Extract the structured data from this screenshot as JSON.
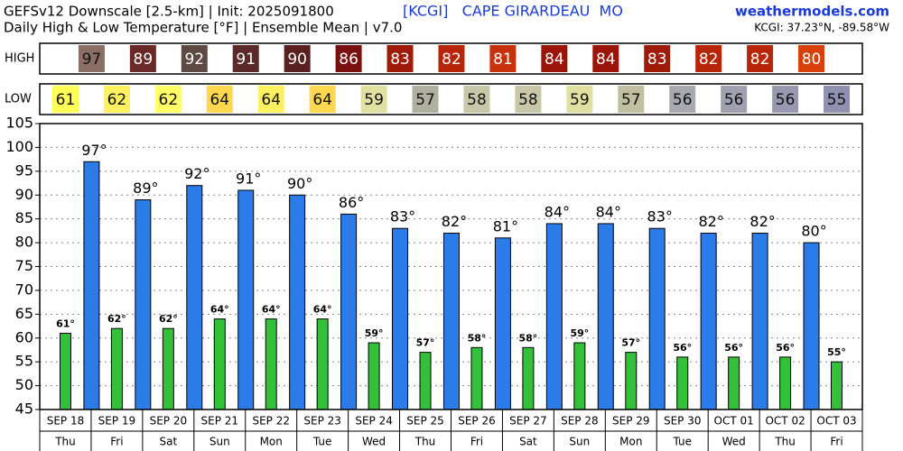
{
  "chart_data": {
    "type": "bar",
    "title": "GEFSv12 Downscale [2.5-km] | Init: 2025091800",
    "subtitle": "Daily High & Low Temperature [°F] | Ensemble Mean | v7.0",
    "station": "[KCGI]   CAPE GIRARDEAU  MO",
    "site": "weathermodels.com",
    "location": "KCGI: 37.23°N, -89.58°W",
    "categories": [
      "SEP 18",
      "SEP 19",
      "SEP 20",
      "SEP 21",
      "SEP 22",
      "SEP 23",
      "SEP 24",
      "SEP 25",
      "SEP 26",
      "SEP 27",
      "SEP 28",
      "SEP 29",
      "SEP 30",
      "OCT 01",
      "OCT 02",
      "OCT 03"
    ],
    "day_labels": [
      "Thu",
      "Fri",
      "Sat",
      "Sun",
      "Mon",
      "Tue",
      "Wed",
      "Thu",
      "Fri",
      "Sat",
      "Sun",
      "Mon",
      "Tue",
      "Wed",
      "Thu",
      "Fri"
    ],
    "series": [
      {
        "name": "HIGH",
        "color": "#2b7be8",
        "values": [
          null,
          97,
          89,
          92,
          91,
          90,
          86,
          83,
          82,
          81,
          84,
          84,
          83,
          82,
          82,
          80
        ],
        "value_labels": [
          null,
          "97°",
          "89°",
          "92°",
          "91°",
          "90°",
          "86°",
          "83°",
          "82°",
          "81°",
          "84°",
          "84°",
          "83°",
          "82°",
          "82°",
          "80°"
        ],
        "box_colors": [
          null,
          "#8b6e64",
          "#6a2a2a",
          "#5e4943",
          "#5c2a28",
          "#5a2020",
          "#7a1010",
          "#a01a0a",
          "#b8260a",
          "#c8320a",
          "#9a1408",
          "#9a1408",
          "#a01a0a",
          "#b8260a",
          "#b8260a",
          "#d8400a"
        ]
      },
      {
        "name": "LOW",
        "color": "#33c13a",
        "values": [
          61,
          62,
          62,
          64,
          64,
          64,
          59,
          57,
          58,
          58,
          59,
          57,
          56,
          56,
          56,
          55
        ],
        "value_labels": [
          "61°",
          "62°",
          "62°",
          "64°",
          "64°",
          "64°",
          "59°",
          "57°",
          "58°",
          "58°",
          "59°",
          "57°",
          "56°",
          "56°",
          "56°",
          "55°"
        ],
        "box_colors": [
          "#ffff55",
          "#fff060",
          "#ffff66",
          "#ffd84f",
          "#fff060",
          "#ffd84f",
          "#e0e0a0",
          "#b0b0a0",
          "#c8c8a8",
          "#c8c8a8",
          "#e0e0a0",
          "#c0c0a0",
          "#a8a8b0",
          "#a0a0b0",
          "#9898b0",
          "#9090b0"
        ]
      }
    ],
    "ylim": [
      45,
      105
    ],
    "yticks": [
      45,
      50,
      55,
      60,
      65,
      70,
      75,
      80,
      85,
      90,
      95,
      100,
      105
    ],
    "grid": true
  }
}
